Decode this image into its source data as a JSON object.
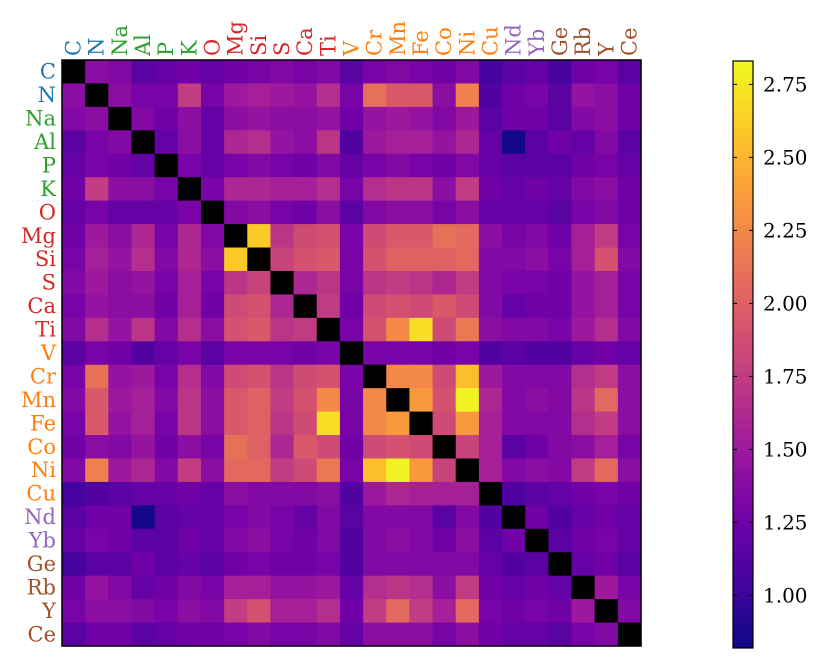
{
  "chart_data": {
    "type": "heatmap",
    "title": "",
    "xlabel": "",
    "ylabel": "",
    "elements": [
      "C",
      "N",
      "Na",
      "Al",
      "P",
      "K",
      "O",
      "Mg",
      "Si",
      "S",
      "Ca",
      "Ti",
      "V",
      "Cr",
      "Mn",
      "Fe",
      "Co",
      "Ni",
      "Cu",
      "Nd",
      "Yb",
      "Ge",
      "Rb",
      "Y",
      "Ce"
    ],
    "group_colors": {
      "C": "#1f77b4",
      "N": "#1f77b4",
      "Na": "#2ca02c",
      "Al": "#2ca02c",
      "P": "#2ca02c",
      "K": "#2ca02c",
      "O": "#d62728",
      "Mg": "#d62728",
      "Si": "#d62728",
      "S": "#d62728",
      "Ca": "#d62728",
      "Ti": "#d62728",
      "V": "#ff7f0e",
      "Cr": "#ff7f0e",
      "Mn": "#ff7f0e",
      "Fe": "#ff7f0e",
      "Co": "#ff7f0e",
      "Ni": "#ff7f0e",
      "Cu": "#ff7f0e",
      "Nd": "#9467bd",
      "Yb": "#9467bd",
      "Ge": "#a0522d",
      "Rb": "#a0522d",
      "Y": "#a0522d",
      "Ce": "#a0522d"
    },
    "diagonal_color": "#000000",
    "colormap": "plasma",
    "colorbar": {
      "min": 0.82,
      "max": 2.83,
      "ticks": [
        "1.00",
        "1.25",
        "1.50",
        "1.75",
        "2.00",
        "2.25",
        "2.50",
        "2.75"
      ]
    },
    "matrix": [
      [
        null,
        1.4,
        1.35,
        1.15,
        1.2,
        1.25,
        1.2,
        1.25,
        1.3,
        1.35,
        1.3,
        1.35,
        1.15,
        1.3,
        1.35,
        1.3,
        1.25,
        1.35,
        1.05,
        1.15,
        1.2,
        1.05,
        1.25,
        1.3,
        1.15
      ],
      [
        1.4,
        null,
        1.4,
        1.3,
        1.3,
        1.75,
        1.3,
        1.5,
        1.55,
        1.5,
        1.45,
        1.65,
        1.3,
        2.1,
        1.95,
        1.95,
        1.4,
        2.2,
        1.1,
        1.25,
        1.3,
        1.15,
        1.45,
        1.4,
        1.25
      ],
      [
        1.35,
        1.4,
        null,
        1.35,
        1.25,
        1.4,
        1.2,
        1.4,
        1.45,
        1.4,
        1.4,
        1.45,
        1.25,
        1.45,
        1.5,
        1.45,
        1.35,
        1.5,
        1.15,
        1.25,
        1.25,
        1.15,
        1.35,
        1.4,
        1.25
      ],
      [
        1.15,
        1.3,
        1.35,
        null,
        1.2,
        1.4,
        1.2,
        1.6,
        1.65,
        1.45,
        1.4,
        1.7,
        1.1,
        1.5,
        1.55,
        1.55,
        1.45,
        1.6,
        1.2,
        0.85,
        1.15,
        1.25,
        1.2,
        1.35,
        1.15
      ],
      [
        1.2,
        1.3,
        1.25,
        1.2,
        null,
        1.3,
        1.2,
        1.3,
        1.35,
        1.3,
        1.25,
        1.35,
        1.2,
        1.3,
        1.35,
        1.3,
        1.25,
        1.35,
        1.2,
        1.15,
        1.15,
        1.15,
        1.25,
        1.3,
        1.2
      ],
      [
        1.25,
        1.75,
        1.4,
        1.4,
        1.3,
        null,
        1.3,
        1.6,
        1.6,
        1.55,
        1.55,
        1.65,
        1.3,
        1.65,
        1.7,
        1.7,
        1.4,
        1.75,
        1.25,
        1.2,
        1.25,
        1.2,
        1.35,
        1.4,
        1.25
      ],
      [
        1.2,
        1.3,
        1.2,
        1.2,
        1.2,
        1.3,
        null,
        1.35,
        1.4,
        1.3,
        1.25,
        1.4,
        1.15,
        1.35,
        1.4,
        1.4,
        1.3,
        1.4,
        1.2,
        1.2,
        1.2,
        1.15,
        1.3,
        1.35,
        1.25
      ],
      [
        1.25,
        1.5,
        1.4,
        1.6,
        1.3,
        1.6,
        1.35,
        null,
        2.6,
        1.7,
        1.85,
        1.9,
        1.3,
        1.85,
        1.95,
        1.95,
        2.1,
        2.05,
        1.4,
        1.3,
        1.35,
        1.25,
        1.55,
        1.75,
        1.3
      ],
      [
        1.3,
        1.55,
        1.45,
        1.65,
        1.35,
        1.6,
        1.4,
        2.6,
        null,
        1.8,
        1.9,
        1.95,
        1.3,
        1.9,
        2.0,
        2.0,
        2.0,
        2.05,
        1.35,
        1.35,
        1.4,
        1.3,
        1.55,
        1.9,
        1.35
      ],
      [
        1.35,
        1.5,
        1.4,
        1.45,
        1.3,
        1.55,
        1.3,
        1.7,
        1.8,
        null,
        1.6,
        1.7,
        1.3,
        1.7,
        1.75,
        1.7,
        1.6,
        1.75,
        1.35,
        1.3,
        1.3,
        1.25,
        1.45,
        1.55,
        1.3
      ],
      [
        1.3,
        1.45,
        1.4,
        1.4,
        1.25,
        1.55,
        1.25,
        1.85,
        1.9,
        1.6,
        null,
        1.75,
        1.25,
        1.85,
        1.9,
        1.85,
        1.95,
        1.85,
        1.35,
        1.2,
        1.25,
        1.25,
        1.45,
        1.55,
        1.3
      ],
      [
        1.35,
        1.65,
        1.45,
        1.7,
        1.35,
        1.65,
        1.4,
        1.9,
        1.95,
        1.7,
        1.75,
        null,
        1.3,
        1.9,
        2.25,
        2.7,
        1.85,
        2.15,
        1.4,
        1.35,
        1.35,
        1.3,
        1.5,
        1.65,
        1.35
      ],
      [
        1.15,
        1.3,
        1.25,
        1.1,
        1.2,
        1.3,
        1.15,
        1.3,
        1.3,
        1.3,
        1.25,
        1.3,
        null,
        1.3,
        1.3,
        1.3,
        1.25,
        1.3,
        1.1,
        1.15,
        1.1,
        1.1,
        1.2,
        1.25,
        1.2
      ],
      [
        1.3,
        2.1,
        1.45,
        1.5,
        1.3,
        1.65,
        1.35,
        1.85,
        1.9,
        1.7,
        1.85,
        1.9,
        1.3,
        null,
        2.25,
        2.25,
        1.85,
        2.55,
        1.5,
        1.35,
        1.35,
        1.35,
        1.65,
        1.75,
        1.4
      ],
      [
        1.35,
        1.95,
        1.5,
        1.55,
        1.35,
        1.7,
        1.4,
        1.95,
        2.0,
        1.75,
        1.9,
        2.25,
        1.3,
        2.25,
        null,
        2.35,
        1.9,
        2.8,
        1.6,
        1.35,
        1.4,
        1.35,
        1.7,
        2.05,
        1.4
      ],
      [
        1.3,
        1.95,
        1.45,
        1.55,
        1.3,
        1.7,
        1.4,
        1.95,
        2.0,
        1.7,
        1.85,
        2.7,
        1.3,
        2.25,
        2.35,
        null,
        1.85,
        2.35,
        1.55,
        1.35,
        1.35,
        1.35,
        1.65,
        1.75,
        1.4
      ],
      [
        1.25,
        1.4,
        1.35,
        1.45,
        1.25,
        1.4,
        1.3,
        2.1,
        2.0,
        1.6,
        1.95,
        1.85,
        1.25,
        1.85,
        1.9,
        1.85,
        null,
        1.8,
        1.55,
        1.15,
        1.25,
        1.35,
        1.4,
        1.55,
        1.3
      ],
      [
        1.35,
        2.2,
        1.5,
        1.6,
        1.35,
        1.75,
        1.4,
        2.05,
        2.05,
        1.75,
        1.85,
        2.15,
        1.3,
        2.55,
        2.8,
        2.35,
        1.8,
        null,
        1.55,
        1.35,
        1.4,
        1.35,
        1.75,
        2.05,
        1.4
      ],
      [
        1.05,
        1.1,
        1.15,
        1.2,
        1.2,
        1.25,
        1.2,
        1.4,
        1.35,
        1.35,
        1.35,
        1.4,
        1.1,
        1.5,
        1.6,
        1.55,
        1.55,
        1.55,
        null,
        1.1,
        1.15,
        1.2,
        1.25,
        1.3,
        1.25
      ],
      [
        1.15,
        1.25,
        1.25,
        0.85,
        1.15,
        1.2,
        1.2,
        1.3,
        1.35,
        1.3,
        1.2,
        1.35,
        1.15,
        1.35,
        1.35,
        1.35,
        1.15,
        1.35,
        1.1,
        null,
        1.25,
        1.1,
        1.2,
        1.25,
        1.2
      ],
      [
        1.2,
        1.3,
        1.25,
        1.15,
        1.15,
        1.25,
        1.2,
        1.35,
        1.4,
        1.3,
        1.25,
        1.35,
        1.1,
        1.35,
        1.4,
        1.35,
        1.25,
        1.4,
        1.15,
        1.25,
        null,
        1.15,
        1.25,
        1.3,
        1.2
      ],
      [
        1.05,
        1.15,
        1.15,
        1.25,
        1.15,
        1.2,
        1.15,
        1.25,
        1.3,
        1.25,
        1.25,
        1.3,
        1.1,
        1.35,
        1.35,
        1.35,
        1.35,
        1.35,
        1.2,
        1.1,
        1.15,
        null,
        1.2,
        1.25,
        1.15
      ],
      [
        1.25,
        1.45,
        1.35,
        1.2,
        1.25,
        1.35,
        1.3,
        1.55,
        1.55,
        1.45,
        1.45,
        1.5,
        1.2,
        1.65,
        1.7,
        1.65,
        1.4,
        1.75,
        1.25,
        1.2,
        1.25,
        1.2,
        null,
        1.5,
        1.3
      ],
      [
        1.3,
        1.4,
        1.4,
        1.35,
        1.3,
        1.4,
        1.35,
        1.75,
        1.9,
        1.55,
        1.55,
        1.65,
        1.25,
        1.75,
        2.05,
        1.75,
        1.55,
        2.05,
        1.3,
        1.25,
        1.3,
        1.25,
        1.5,
        null,
        1.35
      ],
      [
        1.15,
        1.25,
        1.25,
        1.15,
        1.2,
        1.25,
        1.25,
        1.3,
        1.35,
        1.3,
        1.3,
        1.35,
        1.2,
        1.4,
        1.4,
        1.4,
        1.3,
        1.4,
        1.25,
        1.2,
        1.2,
        1.15,
        1.3,
        1.35,
        null
      ]
    ]
  }
}
